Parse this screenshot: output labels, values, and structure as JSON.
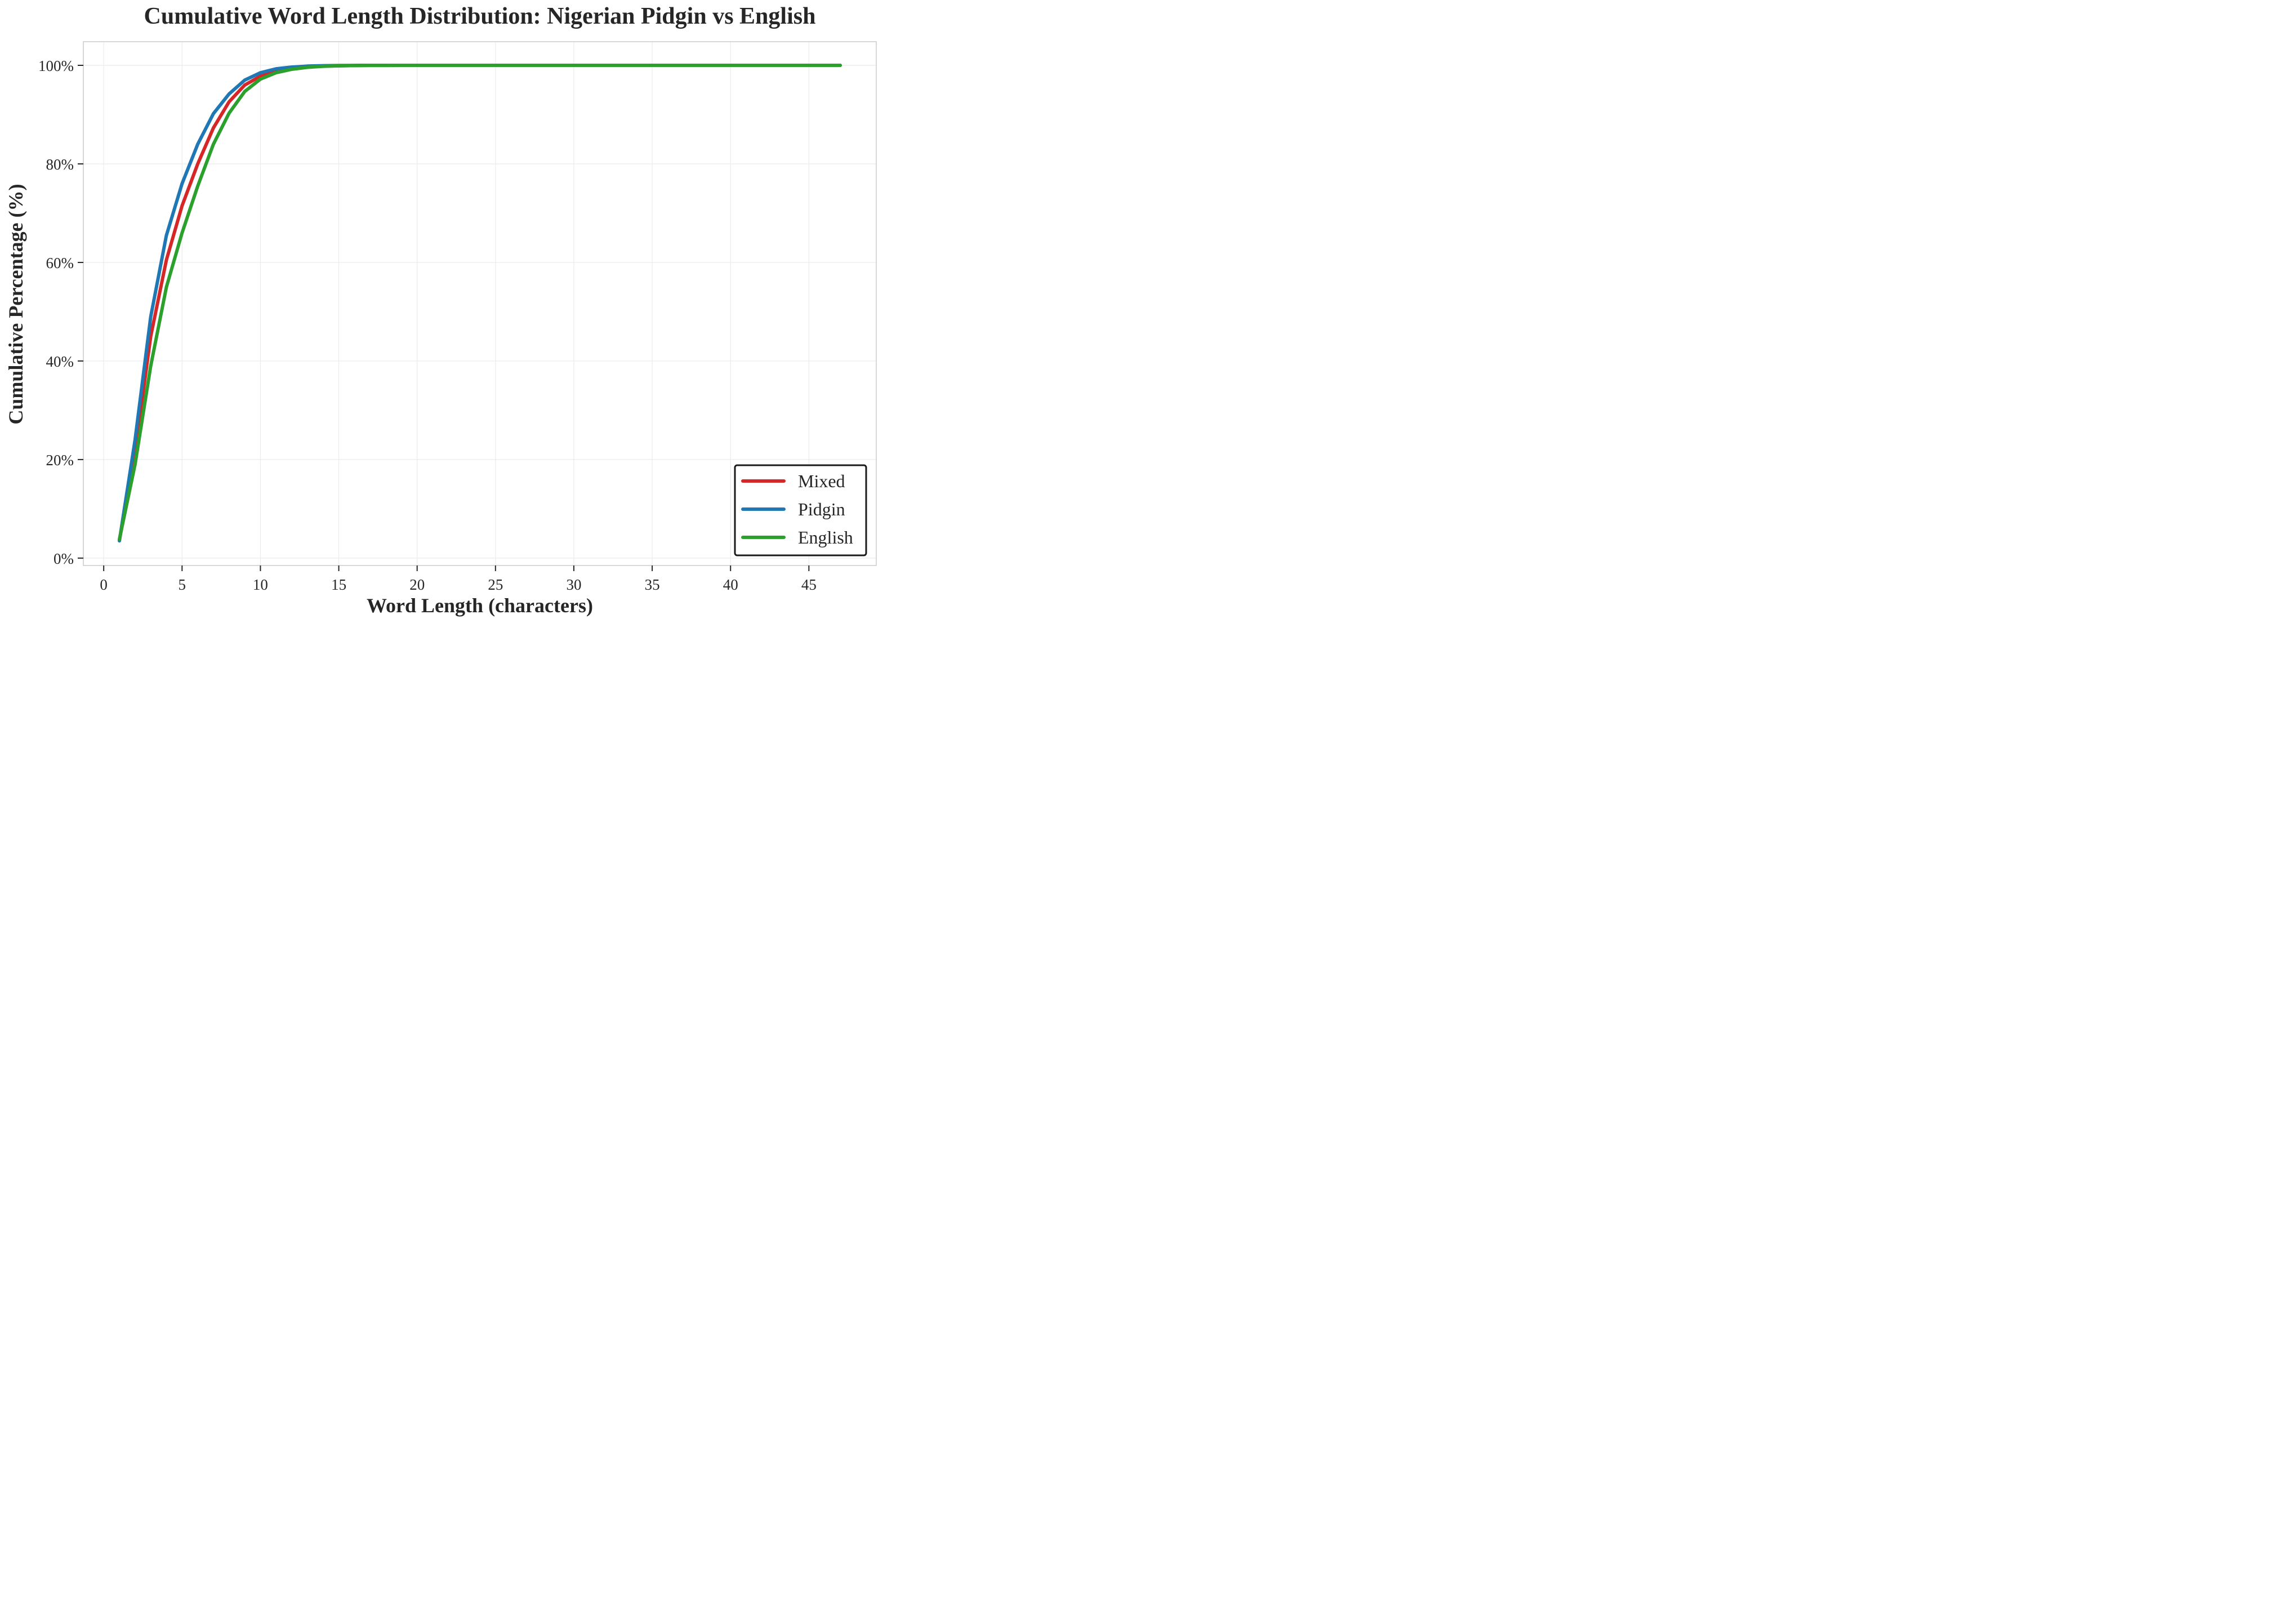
{
  "chart_data": {
    "type": "line",
    "title": "Cumulative Word Length Distribution: Nigerian Pidgin vs English",
    "xlabel": "Word Length (characters)",
    "ylabel": "Cumulative Percentage (%)",
    "xlim": [
      -1.3,
      49.3
    ],
    "ylim": [
      -1.5,
      104.8
    ],
    "x_ticks": [
      0,
      5,
      10,
      15,
      20,
      25,
      30,
      35,
      40,
      45
    ],
    "x_tick_labels": [
      "0",
      "5",
      "10",
      "15",
      "20",
      "25",
      "30",
      "35",
      "40",
      "45"
    ],
    "y_ticks": [
      0,
      20,
      40,
      60,
      80,
      100
    ],
    "y_tick_labels": [
      "0%",
      "20%",
      "40%",
      "60%",
      "80%",
      "100%"
    ],
    "grid": true,
    "legend_position": "bottom-right",
    "series": [
      {
        "name": "Mixed",
        "color": "#d62728",
        "x": [
          1,
          2,
          3,
          4,
          5,
          6,
          7,
          8,
          9,
          10,
          11,
          12,
          13,
          14,
          15,
          16,
          17,
          18,
          19,
          20,
          47
        ],
        "y": [
          3.6,
          21.5,
          45.0,
          60.5,
          71.5,
          80.0,
          87.3,
          92.6,
          96.0,
          97.8,
          98.9,
          99.4,
          99.7,
          99.85,
          99.92,
          99.96,
          99.98,
          99.99,
          100,
          100,
          100
        ]
      },
      {
        "name": "Pidgin",
        "color": "#1f77b4",
        "x": [
          1,
          2,
          3,
          4,
          5,
          6,
          7,
          8,
          9,
          10,
          11,
          12,
          13,
          14,
          15,
          16,
          17,
          18,
          19,
          20,
          47
        ],
        "y": [
          3.5,
          24.0,
          49.0,
          65.5,
          76.0,
          84.0,
          90.2,
          94.2,
          97.0,
          98.5,
          99.3,
          99.65,
          99.85,
          99.93,
          99.97,
          99.99,
          100,
          100,
          100,
          100,
          100
        ]
      },
      {
        "name": "English",
        "color": "#2ca02c",
        "x": [
          1,
          2,
          3,
          4,
          5,
          6,
          7,
          8,
          9,
          10,
          11,
          12,
          13,
          14,
          15,
          16,
          17,
          18,
          19,
          20,
          47
        ],
        "y": [
          3.8,
          19.0,
          39.0,
          55.0,
          66.0,
          75.5,
          84.0,
          90.3,
          94.7,
          97.2,
          98.5,
          99.2,
          99.6,
          99.8,
          99.9,
          99.95,
          99.98,
          99.99,
          100,
          100,
          100
        ]
      }
    ]
  }
}
